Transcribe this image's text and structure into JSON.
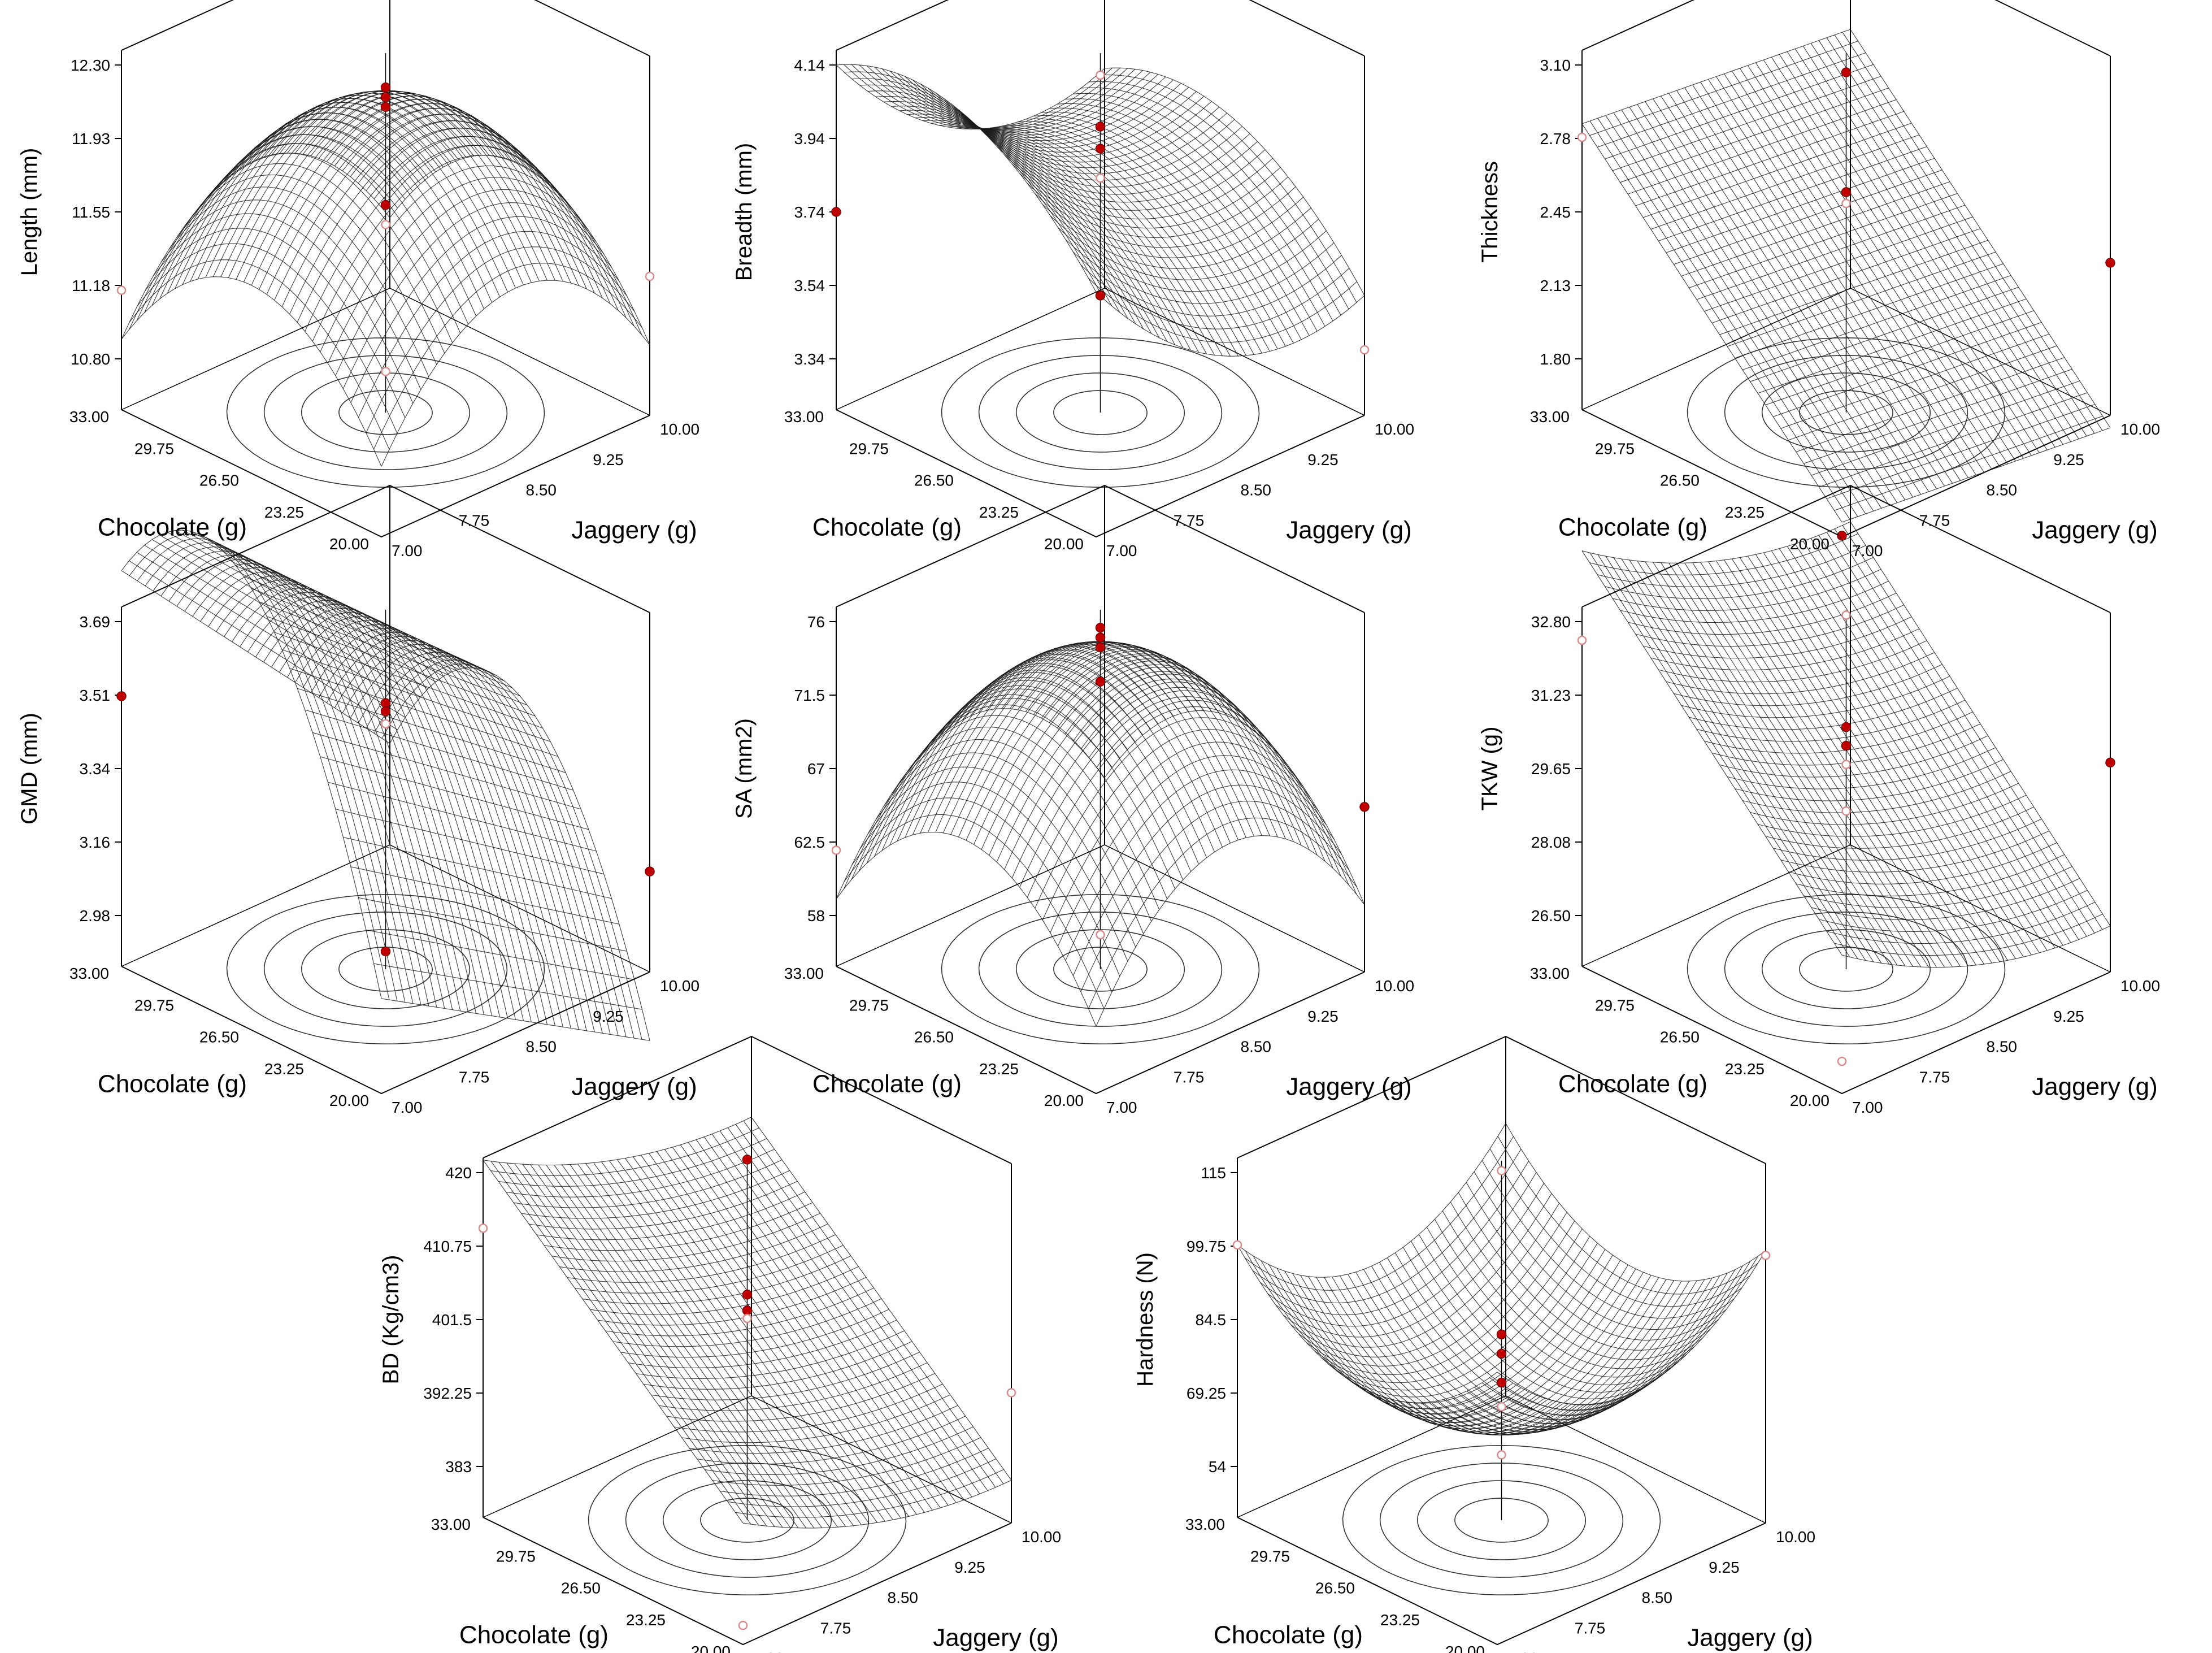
{
  "colors": {
    "surface": "#1a1a1a",
    "box": "#000000",
    "point_solid": "#c00000",
    "point_open": "#d98c8c"
  },
  "chart_data": [
    {
      "type": "surface3d",
      "zlabel": "Length (mm)",
      "xlabel": "Chocolate (g)",
      "ylabel": "Jaggery (g)",
      "xticks": [
        "33.00",
        "29.75",
        "26.50",
        "23.25",
        "20.00"
      ],
      "yticks": [
        "7.00",
        "7.75",
        "8.50",
        "9.25",
        "10.00"
      ],
      "zticks": [
        "10.80",
        "11.18",
        "11.55",
        "11.93",
        "12.30"
      ],
      "xlim": [
        20,
        33
      ],
      "ylim": [
        7,
        10
      ],
      "zlim": [
        10.8,
        12.3
      ],
      "surface_model": "dome",
      "model_range": [
        10.9,
        12.1
      ],
      "contours": true,
      "points_solid": [
        [
          26.5,
          8.5,
          12.2
        ],
        [
          26.5,
          8.5,
          12.15
        ],
        [
          26.5,
          8.5,
          12.1
        ],
        [
          26.5,
          8.5,
          11.6
        ]
      ],
      "points_open": [
        [
          33,
          7,
          11.15
        ],
        [
          20,
          10,
          11.25
        ],
        [
          26.5,
          8.5,
          11.5
        ],
        [
          26.5,
          8.5,
          10.75
        ]
      ]
    },
    {
      "type": "surface3d",
      "zlabel": "Breadth (mm)",
      "xlabel": "Chocolate (g)",
      "ylabel": "Jaggery (g)",
      "xticks": [
        "33.00",
        "29.75",
        "26.50",
        "23.25",
        "20.00"
      ],
      "yticks": [
        "7.00",
        "7.75",
        "8.50",
        "9.25",
        "10.00"
      ],
      "zticks": [
        "3.34",
        "3.54",
        "3.74",
        "3.94",
        "4.14"
      ],
      "xlim": [
        20,
        33
      ],
      "ylim": [
        7,
        10
      ],
      "zlim": [
        3.34,
        4.14
      ],
      "surface_model": "saddle",
      "model_range": [
        3.46,
        4.14
      ],
      "contours": true,
      "points_solid": [
        [
          33,
          7,
          3.74
        ],
        [
          26.5,
          8.5,
          3.98
        ],
        [
          26.5,
          8.5,
          3.92
        ],
        [
          26.5,
          8.5,
          3.52
        ]
      ],
      "points_open": [
        [
          26.5,
          8.5,
          4.12
        ],
        [
          20,
          10,
          3.38
        ],
        [
          26.5,
          8.5,
          3.84
        ]
      ]
    },
    {
      "type": "surface3d",
      "zlabel": "Thickness",
      "xlabel": "Chocolate (g)",
      "ylabel": "Jaggery (g)",
      "xticks": [
        "33.00",
        "29.75",
        "26.50",
        "23.25",
        "20.00"
      ],
      "yticks": [
        "7.00",
        "7.75",
        "8.50",
        "9.25",
        "10.00"
      ],
      "zticks": [
        "1.80",
        "2.13",
        "2.45",
        "2.78",
        "3.10"
      ],
      "xlim": [
        20,
        33
      ],
      "ylim": [
        7,
        10
      ],
      "zlim": [
        1.8,
        3.1
      ],
      "surface_model": "plane",
      "model_range": [
        1.58,
        2.78
      ],
      "contours": true,
      "points_solid": [
        [
          26.5,
          8.5,
          3.08
        ],
        [
          26.5,
          8.5,
          2.55
        ],
        [
          20,
          10,
          2.25
        ],
        [
          20,
          7,
          1.58
        ]
      ],
      "points_open": [
        [
          33,
          7,
          2.78
        ],
        [
          26.5,
          8.5,
          2.5
        ]
      ]
    },
    {
      "type": "surface3d",
      "zlabel": "GMD (mm)",
      "xlabel": "Chocolate (g)",
      "ylabel": "Jaggery (g)",
      "xticks": [
        "33.00",
        "29.75",
        "26.50",
        "23.25",
        "20.00"
      ],
      "yticks": [
        "7.00",
        "7.75",
        "8.50",
        "9.25",
        "10.00"
      ],
      "zticks": [
        "2.98",
        "3.16",
        "3.34",
        "3.51",
        "3.69"
      ],
      "xlim": [
        20,
        33
      ],
      "ylim": [
        7,
        10
      ],
      "zlim": [
        2.98,
        3.69
      ],
      "surface_model": "ridge",
      "model_range": [
        2.9,
        3.69
      ],
      "contours": true,
      "points_solid": [
        [
          33,
          7,
          3.51
        ],
        [
          26.5,
          8.5,
          3.5
        ],
        [
          26.5,
          8.5,
          3.48
        ],
        [
          20,
          10,
          3.1
        ],
        [
          26.5,
          8.5,
          2.9
        ]
      ],
      "points_open": [
        [
          26.5,
          8.5,
          3.45
        ]
      ]
    },
    {
      "type": "surface3d",
      "zlabel": "SA (mm2)",
      "xlabel": "Chocolate (g)",
      "ylabel": "Jaggery (g)",
      "xticks": [
        "33.00",
        "29.75",
        "26.50",
        "23.25",
        "20.00"
      ],
      "yticks": [
        "7.00",
        "7.75",
        "8.50",
        "9.25",
        "10.00"
      ],
      "zticks": [
        "58",
        "62.5",
        "67",
        "71.5",
        "76"
      ],
      "xlim": [
        20,
        33
      ],
      "ylim": [
        7,
        10
      ],
      "zlim": [
        58,
        76
      ],
      "surface_model": "dome",
      "model_range": [
        59,
        74
      ],
      "contours": true,
      "points_solid": [
        [
          26.5,
          8.5,
          75.8
        ],
        [
          26.5,
          8.5,
          75.2
        ],
        [
          26.5,
          8.5,
          74.6
        ],
        [
          26.5,
          8.5,
          72.5
        ],
        [
          20,
          10,
          65
        ]
      ],
      "points_open": [
        [
          33,
          7,
          62
        ],
        [
          26.5,
          8.5,
          57
        ]
      ]
    },
    {
      "type": "surface3d",
      "zlabel": "TKW (g)",
      "xlabel": "Chocolate (g)",
      "ylabel": "Jaggery (g)",
      "xticks": [
        "33.00",
        "29.75",
        "26.50",
        "23.25",
        "20.00"
      ],
      "yticks": [
        "7.00",
        "7.75",
        "8.50",
        "9.25",
        "10.00"
      ],
      "zticks": [
        "26.50",
        "28.08",
        "29.65",
        "31.23",
        "32.80"
      ],
      "xlim": [
        20,
        33
      ],
      "ylim": [
        7,
        10
      ],
      "zlim": [
        26.5,
        32.8
      ],
      "surface_model": "tilt",
      "model_range": [
        26.2,
        32.8
      ],
      "contours": true,
      "points_solid": [
        [
          26.5,
          8.5,
          30.6
        ],
        [
          26.5,
          8.5,
          30.2
        ],
        [
          20,
          10,
          29.9
        ]
      ],
      "points_open": [
        [
          33,
          7,
          32.4
        ],
        [
          26.5,
          8.5,
          33.0
        ],
        [
          26.5,
          8.5,
          29.8
        ],
        [
          26.5,
          8.5,
          28.8
        ],
        [
          20,
          7,
          26.1
        ]
      ]
    },
    {
      "type": "surface3d",
      "zlabel": "BD (Kg/cm3)",
      "xlabel": "Chocolate (g)",
      "ylabel": "Jaggery (g)",
      "xticks": [
        "33.00",
        "29.75",
        "26.50",
        "23.25",
        "20.00"
      ],
      "yticks": [
        "7.00",
        "7.75",
        "8.50",
        "9.25",
        "10.00"
      ],
      "zticks": [
        "383",
        "392.25",
        "401.5",
        "410.75",
        "420"
      ],
      "xlim": [
        20,
        33
      ],
      "ylim": [
        7,
        10
      ],
      "zlim": [
        383,
        420
      ],
      "surface_model": "tilt",
      "model_range": [
        381,
        414
      ],
      "contours": true,
      "points_solid": [
        [
          26.5,
          8.5,
          422
        ],
        [
          26.5,
          8.5,
          405
        ],
        [
          26.5,
          8.5,
          403
        ]
      ],
      "points_open": [
        [
          33,
          7,
          413
        ],
        [
          26.5,
          8.5,
          402
        ],
        [
          20,
          10,
          393
        ],
        [
          20,
          7,
          379
        ]
      ]
    },
    {
      "type": "surface3d",
      "zlabel": "Hardness (N)",
      "xlabel": "Chocolate (g)",
      "ylabel": "Jaggery (g)",
      "xticks": [
        "33.00",
        "29.75",
        "26.50",
        "23.25",
        "20.00"
      ],
      "yticks": [
        "7.00",
        "7.75",
        "8.50",
        "9.25",
        "10.00"
      ],
      "zticks": [
        "54",
        "69.25",
        "84.5",
        "99.75",
        "115"
      ],
      "xlim": [
        20,
        33
      ],
      "ylim": [
        7,
        10
      ],
      "zlim": [
        54,
        115
      ],
      "surface_model": "bowl",
      "model_range": [
        66,
        100
      ],
      "contours": true,
      "points_solid": [
        [
          26.5,
          8.5,
          82
        ],
        [
          26.5,
          8.5,
          78
        ],
        [
          26.5,
          8.5,
          72
        ]
      ],
      "points_open": [
        [
          26.5,
          8.5,
          116
        ],
        [
          33,
          7,
          100
        ],
        [
          20,
          10,
          99
        ],
        [
          26.5,
          8.5,
          67
        ],
        [
          26.5,
          8.5,
          57
        ]
      ]
    }
  ]
}
